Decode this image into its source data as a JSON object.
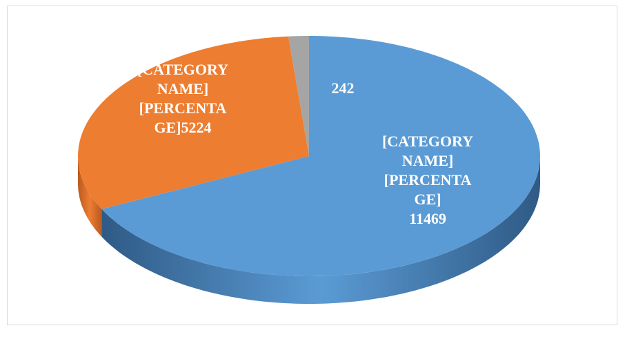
{
  "chart_data": {
    "type": "pie3d",
    "categories": [
      null,
      null,
      null
    ],
    "values": [
      11469,
      5224,
      242
    ],
    "value_labels": [
      "[CATEGORY NAME] [PERCENTAGE] 11469",
      "[CATEGORY NAME] [PERCENTAGE]5224",
      "242"
    ],
    "colors": [
      "#5b9bd5",
      "#ed7d31",
      "#a5a5a5"
    ],
    "side_colors": [
      "#2f5a85",
      "#b85a1f",
      "#7a7a7a"
    ]
  }
}
